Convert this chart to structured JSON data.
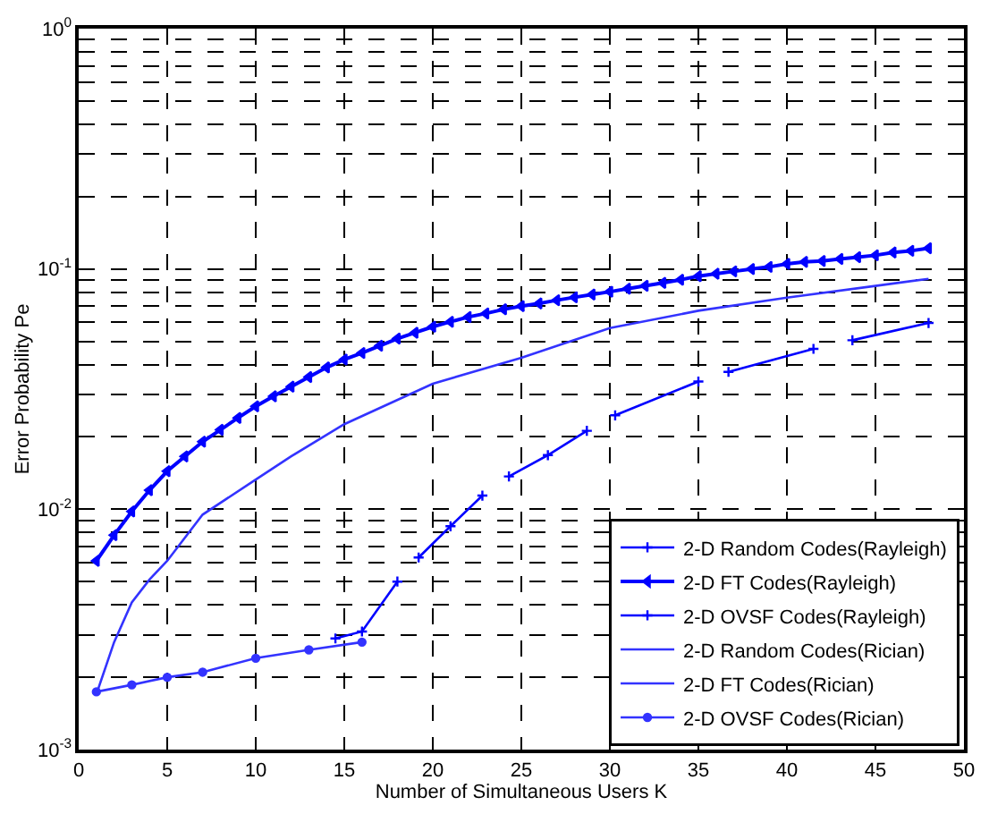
{
  "chart_data": {
    "type": "line",
    "xlabel": "Number of Simultaneous Users K",
    "ylabel": "Error Probability Pe",
    "xlim": [
      0,
      50
    ],
    "xticks": [
      0,
      5,
      10,
      15,
      20,
      25,
      30,
      35,
      40,
      45,
      50
    ],
    "ylim": [
      0.001,
      1
    ],
    "yticks": [
      {
        "value": 0.001,
        "label": "10$^{-3}$"
      },
      {
        "value": 0.01,
        "label": "10$^{-2}$"
      },
      {
        "value": 0.1,
        "label": "10$^{-1}$"
      },
      {
        "value": 1,
        "label": "10$^{0}$"
      }
    ],
    "log": "y",
    "grid": true,
    "legend": "bottom right",
    "series": [
      {
        "name": "2-D Random Codes(Rayleigh)",
        "color": "#0000ff",
        "marker": "cross",
        "values": [
          null
        ]
      },
      {
        "name": "2-D FT Codes(Rayleigh)",
        "color": "#0000ff",
        "marker": "triangle",
        "x": [
          1,
          2,
          3,
          4,
          5,
          6,
          7,
          8,
          9,
          10,
          11,
          12,
          13,
          14,
          15,
          16,
          17,
          18,
          19,
          20,
          21,
          22,
          23,
          24,
          25,
          26,
          27,
          28,
          29,
          30,
          31,
          32,
          33,
          34,
          35,
          36,
          37,
          38,
          39,
          40,
          41,
          42,
          43,
          44,
          45,
          46,
          47,
          48
        ],
        "values": [
          0.0061,
          0.0078,
          0.0098,
          0.012,
          0.0144,
          0.0166,
          0.0191,
          0.0214,
          0.024,
          0.0268,
          0.0295,
          0.0324,
          0.0355,
          0.0389,
          0.042,
          0.0447,
          0.0479,
          0.0513,
          0.0543,
          0.0575,
          0.0603,
          0.0631,
          0.0653,
          0.0679,
          0.07,
          0.0719,
          0.0741,
          0.0762,
          0.0783,
          0.0804,
          0.0828,
          0.0851,
          0.0875,
          0.0902,
          0.0933,
          0.0955,
          0.0977,
          0.1,
          0.102,
          0.105,
          0.107,
          0.108,
          0.11,
          0.112,
          0.114,
          0.117,
          0.119,
          0.122
        ]
      },
      {
        "name": "2-D OVSF Codes(Rayleigh)",
        "color": "#0000ff",
        "marker": "cross",
        "x": [
          14.5,
          16,
          18,
          18.6,
          19.2,
          21,
          22.8,
          23.5,
          24.3,
          26.5,
          28.7,
          29.5,
          30.3,
          35,
          35.8,
          36.7,
          41.5,
          42.6,
          43.7,
          48
        ],
        "values": [
          0.0029,
          0.0031,
          0.005,
          null,
          0.0063,
          0.0085,
          0.0114,
          null,
          0.0137,
          0.0168,
          0.0212,
          null,
          0.0246,
          0.034,
          null,
          0.0373,
          0.0465,
          null,
          0.0505,
          0.0596
        ]
      },
      {
        "name": "2-D Random Codes(Rician)",
        "color": "#3333ff",
        "marker": "none",
        "x": [
          1,
          2,
          3,
          4,
          5,
          7,
          10,
          12,
          15,
          20,
          25,
          30,
          35,
          40,
          45,
          48
        ],
        "values": [
          0.0017,
          0.0028,
          0.0041,
          0.0051,
          0.0061,
          0.0095,
          0.0133,
          0.0166,
          0.0226,
          0.0333,
          0.0427,
          0.0568,
          0.067,
          0.076,
          0.085,
          0.091
        ]
      },
      {
        "name": "2-D FT Codes(Rician)",
        "color": "#3333ff",
        "marker": "none",
        "values": [
          null
        ]
      },
      {
        "name": "2-D OVSF Codes(Rician)",
        "color": "#3333ff",
        "marker": "circle",
        "x": [
          1,
          3,
          5,
          7,
          10,
          13,
          16
        ],
        "values": [
          0.00174,
          0.00186,
          0.002,
          0.0021,
          0.0024,
          0.0026,
          0.0028
        ]
      }
    ]
  }
}
